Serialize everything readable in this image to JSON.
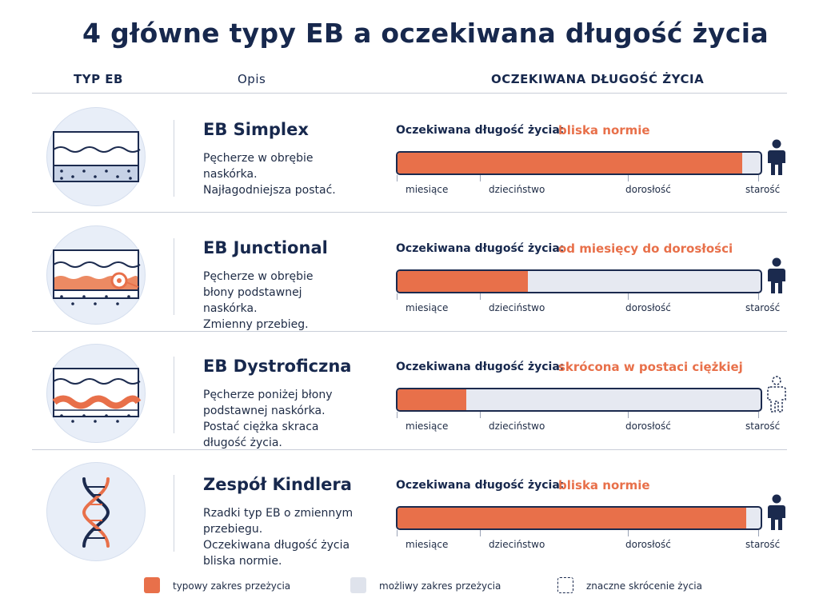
{
  "title": "4 główne typy EB a oczekiwana długość życia",
  "headers": {
    "type": "TYP EB",
    "desc": "Opis",
    "life": "OCZEKIWANA DŁUGOŚĆ ŻYCIA"
  },
  "life_label": "Oczekiwana długość życia:",
  "scale": [
    "miesiące",
    "dzieciństwo",
    "dorosłość",
    "starość"
  ],
  "colors": {
    "typical": "#e8704a",
    "possible": "#e6e9f1",
    "navy": "#1b2a4e"
  },
  "rows": [
    {
      "name": "EB Simplex",
      "desc": [
        "Pęcherze w obrębie",
        "naskórka.",
        "Najłagodniejsza postać."
      ],
      "life_value": "bliska normie",
      "fill_fraction": 0.95,
      "icon": "skin-layers-icon",
      "figure": "person-solid-icon"
    },
    {
      "name": "EB Junctional",
      "desc": [
        "Pęcherze w obrębie",
        "błony podstawnej",
        "naskórka.",
        "Zmienny przebieg."
      ],
      "life_value": "od miesięcy do dorosłości",
      "fill_fraction": 0.36,
      "icon": "skin-junction-target-icon",
      "figure": "person-solid-icon"
    },
    {
      "name": "EB Dystroficzna",
      "desc": [
        "Pęcherze poniżej błony",
        "podstawnej naskórka.",
        "Postać ciężka skraca",
        "długość życia."
      ],
      "life_value": "skrócona w postaci ciężkiej",
      "fill_fraction": 0.19,
      "icon": "skin-dermis-wave-icon",
      "figure": "person-dashed-icon"
    },
    {
      "name": "Zespół Kindlera",
      "desc": [
        "Rzadki typ EB o zmiennym",
        "przebiegu.",
        "Oczekiwana długość życia",
        "bliska normie."
      ],
      "life_value": "bliska normie",
      "fill_fraction": 0.96,
      "icon": "dna-helix-icon",
      "figure": "person-solid-icon"
    }
  ],
  "legend": [
    {
      "label": "typowy zakres przeżycia",
      "icon": "legend-typical-swatch"
    },
    {
      "label": "możliwy zakres przeżycia",
      "icon": "legend-possible-swatch"
    },
    {
      "label": "znaczne skrócenie życia",
      "icon": "legend-shortened-swatch"
    }
  ]
}
